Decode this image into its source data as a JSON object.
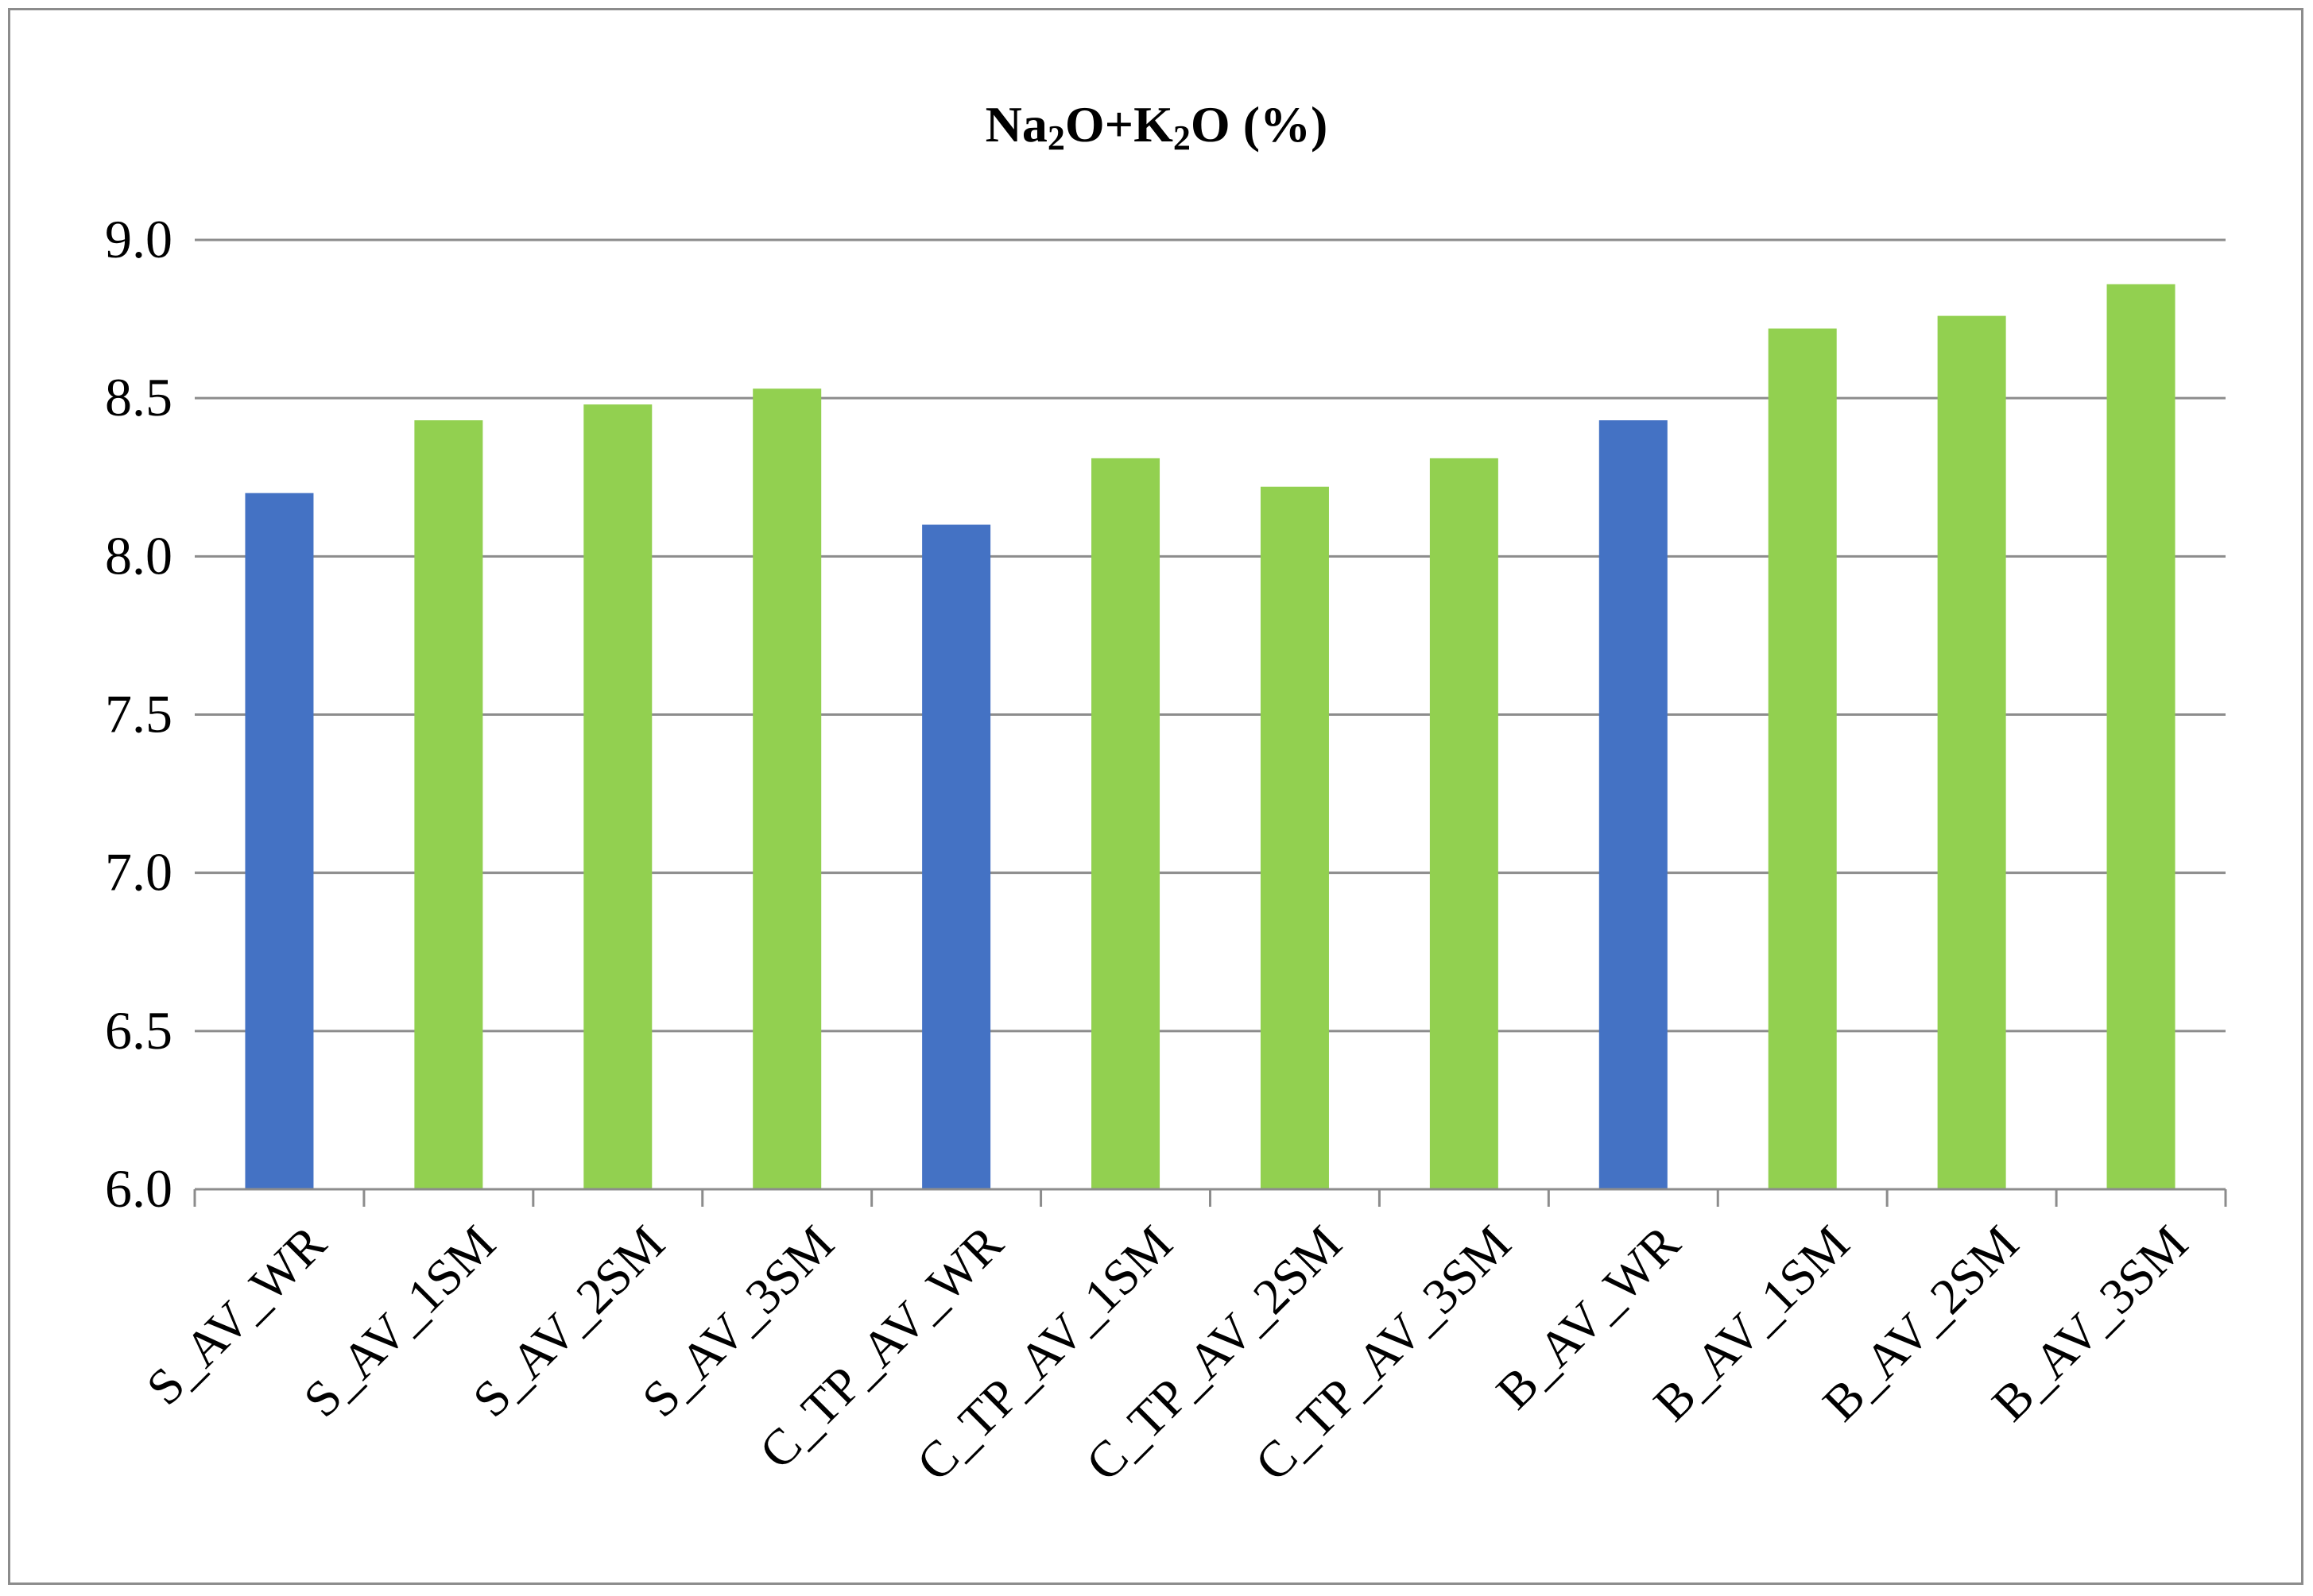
{
  "chart_data": {
    "type": "bar",
    "title": {
      "parts": [
        {
          "text": "Na",
          "sub": false
        },
        {
          "text": "2",
          "sub": true
        },
        {
          "text": "O+K",
          "sub": false
        },
        {
          "text": "2",
          "sub": true
        },
        {
          "text": "O (%)",
          "sub": false
        }
      ]
    },
    "xlabel": "",
    "ylabel": "",
    "categories": [
      "S_AV_WR",
      "S_AV_1SM",
      "S_AV_2SM",
      "S_AV_3SM",
      "C_TP_AV_WR",
      "C_TP_AV_1SM",
      "C_TP_AV_2SM",
      "C_TP_AV_3SM",
      "B_AV_WR",
      "B_AV_1SM",
      "B_AV_2SM",
      "B_AV_3SM"
    ],
    "values": [
      8.2,
      8.43,
      8.48,
      8.53,
      8.1,
      8.31,
      8.22,
      8.31,
      8.43,
      8.72,
      8.76,
      8.86
    ],
    "bar_colors": [
      "#4472c4",
      "#92d050",
      "#92d050",
      "#92d050",
      "#4472c4",
      "#92d050",
      "#92d050",
      "#92d050",
      "#4472c4",
      "#92d050",
      "#92d050",
      "#92d050"
    ],
    "ylim": [
      6.0,
      9.0
    ],
    "yticks": [
      "6.0",
      "6.5",
      "7.0",
      "7.5",
      "8.0",
      "8.5",
      "9.0"
    ],
    "ytick_values": [
      6.0,
      6.5,
      7.0,
      7.5,
      8.0,
      8.5,
      9.0
    ],
    "grid": true,
    "legend": "none",
    "gridline_color": "#8c8c8c",
    "axis_color": "#8c8c8c"
  }
}
